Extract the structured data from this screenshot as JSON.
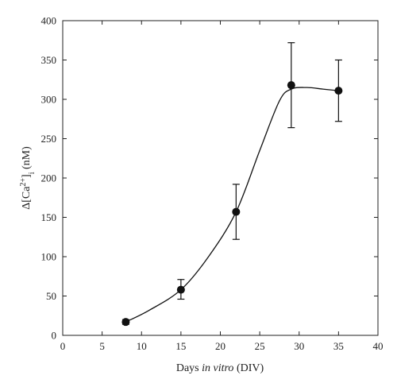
{
  "chart_data": {
    "type": "scatter",
    "title": "",
    "xlabel": {
      "prefix": "Days ",
      "italic": "in vitro",
      "suffix": " (DIV)"
    },
    "ylabel": {
      "pre": "Δ[Ca",
      "sup": "2+",
      "mid": "]",
      "sub": "i",
      "post": " (nM)"
    },
    "xlim": [
      0,
      40
    ],
    "ylim": [
      0,
      400
    ],
    "x_ticks": [
      0,
      5,
      10,
      15,
      20,
      25,
      30,
      35,
      40
    ],
    "y_ticks": [
      0,
      50,
      100,
      150,
      200,
      250,
      300,
      350,
      400
    ],
    "grid": false,
    "legend": "none",
    "series": [
      {
        "x": [
          8,
          15,
          22,
          29,
          35
        ],
        "y": [
          17,
          58,
          157,
          318,
          311
        ],
        "err_low": [
          3,
          12,
          35,
          54,
          39
        ],
        "err_high": [
          3,
          13,
          35,
          54,
          39
        ]
      }
    ],
    "fit_curve": {
      "x": [
        8,
        11,
        15,
        18.5,
        22,
        25,
        27.5,
        29,
        31,
        33,
        35
      ],
      "y": [
        17,
        32,
        58,
        100,
        157,
        235,
        298,
        313,
        315,
        313,
        311
      ]
    },
    "colors": {
      "marker": "#111111",
      "line": "#111111",
      "axis": "#222222"
    }
  }
}
